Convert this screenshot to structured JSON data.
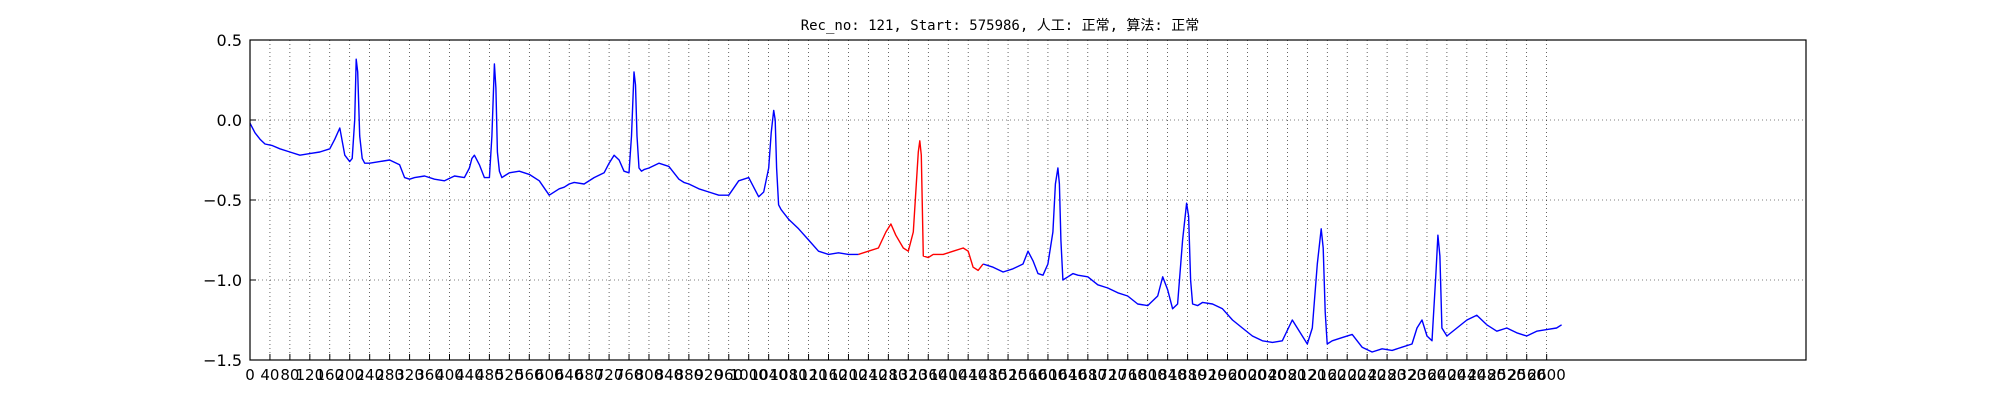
{
  "chart_data": {
    "type": "line",
    "title": "Rec_no: 121, Start: 575986, 人工: 正常, 算法: 正常",
    "xlabel": "",
    "ylabel": "",
    "xlim": [
      0,
      3120
    ],
    "ylim": [
      -1.5,
      0.5
    ],
    "grid": true,
    "x_ticks": [
      0,
      40,
      80,
      120,
      160,
      200,
      240,
      280,
      320,
      360,
      400,
      440,
      480,
      520,
      560,
      600,
      640,
      680,
      720,
      760,
      800,
      840,
      880,
      920,
      960,
      1000,
      1040,
      1080,
      1120,
      1160,
      1200,
      1240,
      1280,
      1320,
      1360,
      1400,
      1440,
      1480,
      1520,
      1560,
      1600,
      1640,
      1680,
      1720,
      1760,
      1800,
      1840,
      1880,
      1920,
      1960,
      2000,
      2040,
      2080,
      2120,
      2160,
      2200,
      2240,
      2280,
      2320,
      2360,
      2400,
      2440,
      2480,
      2520,
      2560,
      2600
    ],
    "y_ticks": [
      -1.5,
      -1.0,
      -0.5,
      0.0,
      0.5
    ],
    "y_tick_labels": [
      "−1.5",
      "−1.0",
      "−0.5",
      "0.0",
      "0.5"
    ],
    "series": [
      {
        "color": "#0000ff",
        "x": [
          0,
          10,
          20,
          30,
          45,
          60,
          80,
          100,
          120,
          140,
          160,
          170,
          180,
          190,
          200,
          205,
          210,
          213,
          216,
          220,
          225,
          230,
          240,
          260,
          280,
          300,
          310,
          320,
          330,
          350,
          370,
          390,
          410,
          430,
          440,
          445,
          450,
          460,
          470,
          480,
          485,
          490,
          493,
          496,
          500,
          505,
          510,
          520,
          540,
          560,
          580,
          600,
          620,
          630,
          640,
          650,
          670,
          690,
          710,
          720,
          730,
          740,
          750,
          760,
          765,
          770,
          773,
          776,
          780,
          785,
          790,
          800,
          820,
          840,
          860,
          870,
          880,
          900,
          920,
          940,
          960,
          980,
          1000,
          1010,
          1020,
          1030,
          1040,
          1045,
          1050,
          1053,
          1056,
          1060,
          1065,
          1070,
          1080,
          1100,
          1120,
          1140,
          1160,
          1180,
          1200,
          1220
        ],
        "y": [
          -0.02,
          -0.08,
          -0.12,
          -0.15,
          -0.16,
          -0.18,
          -0.2,
          -0.22,
          -0.21,
          -0.2,
          -0.18,
          -0.12,
          -0.05,
          -0.22,
          -0.26,
          -0.24,
          0.0,
          0.38,
          0.3,
          -0.1,
          -0.24,
          -0.27,
          -0.27,
          -0.26,
          -0.25,
          -0.28,
          -0.36,
          -0.37,
          -0.36,
          -0.35,
          -0.37,
          -0.38,
          -0.35,
          -0.36,
          -0.3,
          -0.24,
          -0.22,
          -0.28,
          -0.36,
          -0.36,
          -0.1,
          0.35,
          0.2,
          -0.2,
          -0.32,
          -0.36,
          -0.35,
          -0.33,
          -0.32,
          -0.34,
          -0.38,
          -0.47,
          -0.43,
          -0.42,
          -0.4,
          -0.39,
          -0.4,
          -0.36,
          -0.33,
          -0.27,
          -0.22,
          -0.25,
          -0.32,
          -0.33,
          -0.1,
          0.3,
          0.22,
          -0.1,
          -0.3,
          -0.32,
          -0.31,
          -0.3,
          -0.27,
          -0.29,
          -0.37,
          -0.39,
          -0.4,
          -0.43,
          -0.45,
          -0.47,
          -0.47,
          -0.38,
          -0.36,
          -0.42,
          -0.48,
          -0.45,
          -0.3,
          -0.08,
          0.06,
          0.0,
          -0.3,
          -0.53,
          -0.56,
          -0.58,
          -0.62,
          -0.68,
          -0.75,
          -0.82,
          -0.84,
          -0.83,
          -0.84,
          -0.84
        ]
      },
      {
        "color": "#ff0000",
        "x": [
          1220,
          1240,
          1260,
          1275,
          1285,
          1295,
          1310,
          1320,
          1330,
          1336,
          1340,
          1343,
          1346,
          1350,
          1360,
          1370,
          1390,
          1410,
          1430,
          1440,
          1450,
          1460,
          1470
        ],
        "y": [
          -0.84,
          -0.82,
          -0.8,
          -0.7,
          -0.65,
          -0.72,
          -0.8,
          -0.82,
          -0.7,
          -0.4,
          -0.2,
          -0.13,
          -0.22,
          -0.85,
          -0.86,
          -0.84,
          -0.84,
          -0.82,
          -0.8,
          -0.82,
          -0.92,
          -0.94,
          -0.9
        ]
      },
      {
        "color": "#0000ff",
        "x": [
          1470,
          1490,
          1510,
          1530,
          1550,
          1560,
          1570,
          1580,
          1590,
          1600,
          1610,
          1615,
          1620,
          1623,
          1626,
          1630,
          1640,
          1650,
          1660,
          1680,
          1700,
          1720,
          1740,
          1760,
          1780,
          1800,
          1820,
          1830,
          1840,
          1850,
          1860,
          1870,
          1878,
          1882,
          1886,
          1890,
          1900,
          1910,
          1930,
          1950,
          1970,
          1990,
          2010,
          2030,
          2050,
          2070,
          2090,
          2110,
          2120,
          2130,
          2140,
          2148,
          2152,
          2156,
          2160,
          2170,
          2190,
          2210,
          2230,
          2250,
          2270,
          2290,
          2310,
          2330,
          2340,
          2350,
          2360,
          2370,
          2378,
          2382,
          2386,
          2390,
          2400,
          2420,
          2440,
          2460,
          2480,
          2500,
          2520,
          2540,
          2560,
          2580,
          2600,
          2620,
          2630
        ],
        "y": [
          -0.9,
          -0.92,
          -0.95,
          -0.93,
          -0.9,
          -0.82,
          -0.88,
          -0.96,
          -0.97,
          -0.9,
          -0.7,
          -0.4,
          -0.3,
          -0.4,
          -0.75,
          -1.0,
          -0.98,
          -0.96,
          -0.97,
          -0.98,
          -1.03,
          -1.05,
          -1.08,
          -1.1,
          -1.15,
          -1.16,
          -1.1,
          -0.98,
          -1.06,
          -1.18,
          -1.15,
          -0.75,
          -0.52,
          -0.6,
          -1.0,
          -1.15,
          -1.16,
          -1.14,
          -1.15,
          -1.18,
          -1.25,
          -1.3,
          -1.35,
          -1.38,
          -1.39,
          -1.38,
          -1.25,
          -1.35,
          -1.4,
          -1.3,
          -0.9,
          -0.68,
          -0.8,
          -1.2,
          -1.4,
          -1.38,
          -1.36,
          -1.34,
          -1.42,
          -1.45,
          -1.43,
          -1.44,
          -1.42,
          -1.4,
          -1.3,
          -1.25,
          -1.35,
          -1.38,
          -0.95,
          -0.72,
          -0.85,
          -1.3,
          -1.35,
          -1.3,
          -1.25,
          -1.22,
          -1.28,
          -1.32,
          -1.3,
          -1.33,
          -1.35,
          -1.32,
          -1.31,
          -1.3,
          -1.28
        ]
      }
    ]
  }
}
